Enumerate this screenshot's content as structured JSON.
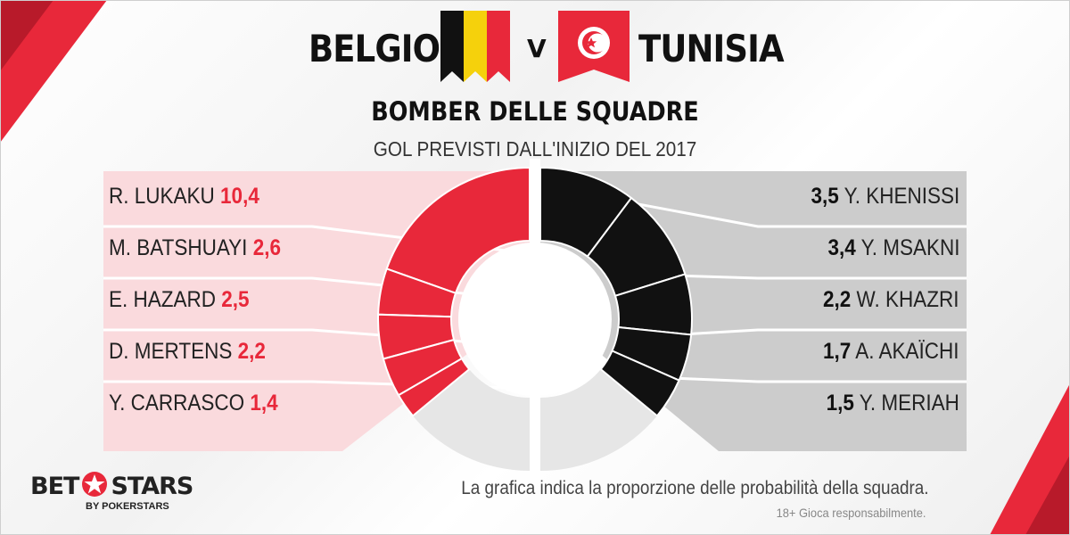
{
  "header": {
    "team_left": "BELGIO",
    "vs": "V",
    "team_right": "TUNISIA",
    "title": "BOMBER DELLE SQUADRE",
    "subtitle": "GOL PREVISTI DALL'INIZIO  DEL 2017"
  },
  "colors": {
    "belgium_accent": "#e8283a",
    "belgium_panel": "#fadadd",
    "tunisia_accent": "#111111",
    "tunisia_panel": "#cccccc",
    "remainder": "#e6e6e6",
    "flag_red": "#e8283a",
    "flag_yellow": "#f5d10c",
    "flag_black": "#111111"
  },
  "chart_data": [
    {
      "type": "pie",
      "series_side": "left",
      "categories": [
        "R. LUKAKU",
        "M. BATSHUAYI",
        "E. HAZARD",
        "D. MERTENS",
        "Y. CARRASCO"
      ],
      "values": [
        10.4,
        2.6,
        2.5,
        2.2,
        1.4
      ],
      "value_labels": [
        "10,4",
        "2,6",
        "2,5",
        "2,2",
        "1,4"
      ]
    },
    {
      "type": "pie",
      "series_side": "right",
      "categories": [
        "Y. KHENISSI",
        "Y. MSAKNI",
        "W. KHAZRI",
        "A. AKAÏCHI",
        "Y. MERIAH"
      ],
      "values": [
        3.5,
        3.4,
        2.2,
        1.7,
        1.5
      ],
      "value_labels": [
        "3,5",
        "3,4",
        "2,2",
        "1,7",
        "1,5"
      ]
    }
  ],
  "footer": {
    "brand_left": "BET",
    "brand_right": "STARS",
    "brand_sub": "BY POKERSTARS",
    "note": "La grafica indica la proporzione delle probabilità della squadra.",
    "disclaimer": "18+ Gioca responsabilmente."
  }
}
